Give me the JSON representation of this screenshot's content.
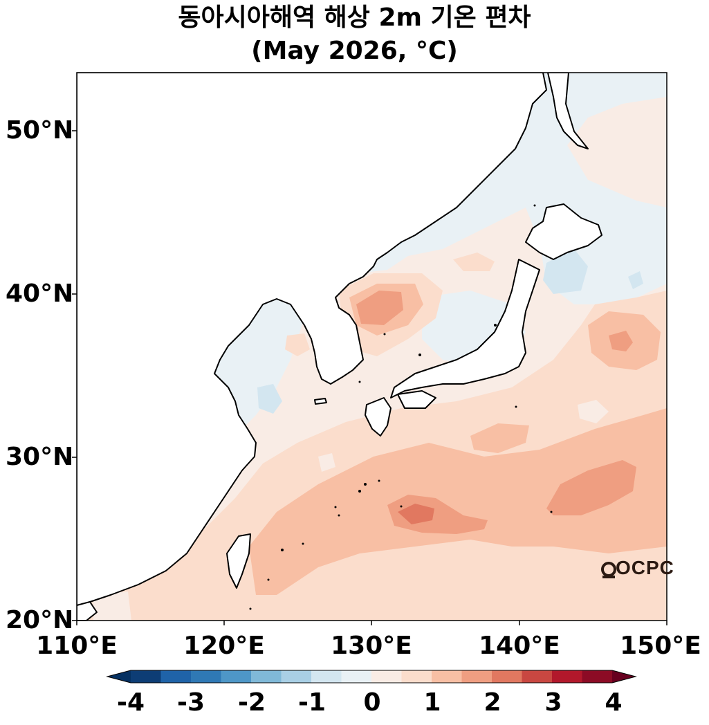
{
  "title": {
    "line1": "동아시아해역 해상 2m 기온 편차",
    "line2": "(May 2026, °C)"
  },
  "map": {
    "latitude_labels": [
      "50°N",
      "40°N",
      "30°N",
      "20°N"
    ],
    "longitude_labels": [
      "110°E",
      "120°E",
      "130°E",
      "140°E",
      "150°E"
    ],
    "extent": {
      "lon_min": 110,
      "lon_max": 150,
      "lat_min": 20,
      "lat_max": 53.5
    },
    "watermark": "OCPC"
  },
  "colorbar": {
    "ticks": [
      "-4",
      "-3",
      "-2",
      "-1",
      "0",
      "1",
      "2",
      "3",
      "4"
    ],
    "colors": [
      "#053061",
      "#0d3d75",
      "#1f63a8",
      "#2f79b5",
      "#4e97c7",
      "#80b9d8",
      "#a9cfe5",
      "#d3e6f0",
      "#e9f1f5",
      "#f9ece5",
      "#fbddcc",
      "#f8bfa4",
      "#ef9e81",
      "#e17860",
      "#c94741",
      "#b2182b",
      "#8c0b25",
      "#67001f"
    ]
  },
  "palette": {
    "ocean_base": "#f9ece5",
    "land": "#ffffff",
    "coast": "#000000"
  }
}
